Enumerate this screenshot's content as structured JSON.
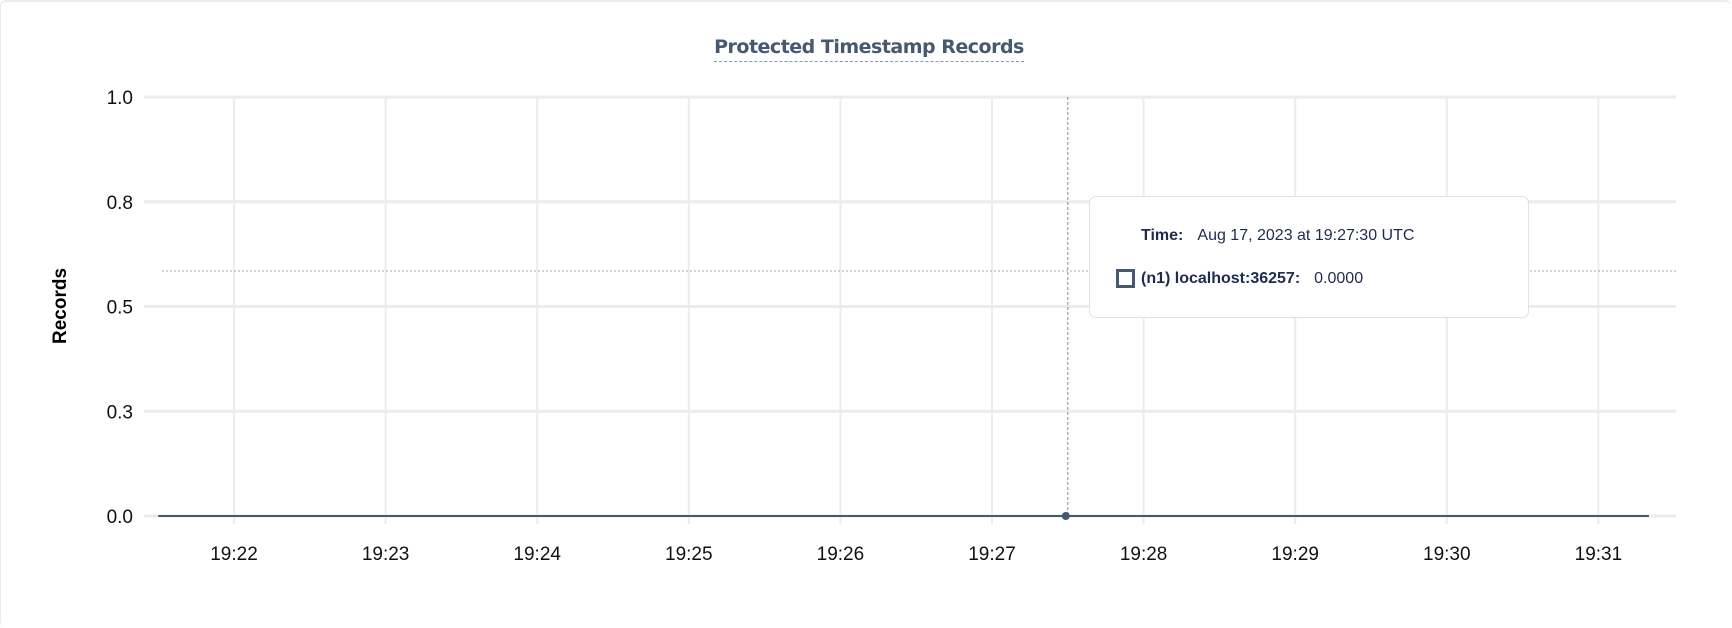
{
  "chart_data": {
    "type": "line",
    "title": "Protected Timestamp Records",
    "ylabel": "Records",
    "xlabel": "",
    "ylim": [
      0,
      1.0
    ],
    "y_ticks": [
      "1.0",
      "0.8",
      "0.5",
      "0.3",
      "0.0"
    ],
    "x_ticks": [
      "19:22",
      "19:23",
      "19:24",
      "19:25",
      "19:26",
      "19:27",
      "19:28",
      "19:29",
      "19:30",
      "19:31"
    ],
    "xlim": [
      "19:21:30",
      "19:31:20"
    ],
    "grid": true,
    "series": [
      {
        "name": "(n1) localhost:36257",
        "color": "#475872",
        "x": [
          "19:21:30",
          "19:22:00",
          "19:23:00",
          "19:24:00",
          "19:25:00",
          "19:26:00",
          "19:27:00",
          "19:27:30",
          "19:28:00",
          "19:29:00",
          "19:30:00",
          "19:31:00",
          "19:31:20"
        ],
        "y": [
          0,
          0,
          0,
          0,
          0,
          0,
          0,
          0,
          0,
          0,
          0,
          0,
          0
        ]
      }
    ],
    "hover": {
      "x": "19:27:30",
      "y": 0
    }
  },
  "tooltip": {
    "time_label": "Time:",
    "time_value": "Aug 17, 2023 at 19:27:30 UTC",
    "series_label": "(n1) localhost:36257:",
    "series_value": "0.0000"
  },
  "colors": {
    "series": "#475872",
    "grid": "#ececec",
    "title": "#475872",
    "tooltip_text": "#1e2b4d"
  }
}
